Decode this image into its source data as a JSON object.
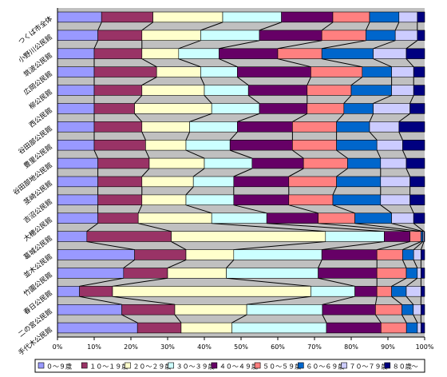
{
  "chart_data": {
    "type": "bar",
    "stacked": "percent",
    "orientation": "horizontal",
    "categories": [
      "つくば市全体",
      "小野川公民館",
      "筑波公民館",
      "広岡公民館",
      "柳公民館",
      "西公民館",
      "谷田部公民館",
      "豊里公民館",
      "谷田部地公民館",
      "茎崎公民館",
      "吉沼公民館",
      "大穂公民館",
      "葛城公民館",
      "並木公民館",
      "竹園公民館",
      "春日公民館",
      "二の宮公民館",
      "手代木公民館"
    ],
    "legend_labels": [
      "０～９歳",
      "１０～１９歳",
      "２０～２９歳",
      "３０～３９歳",
      "４０～４９歳",
      "５０～５９歳",
      "６０～６９歳",
      "７０～７９歳",
      "８０歳～"
    ],
    "colors": [
      "#9999ff",
      "#993366",
      "#ffffcc",
      "#ccffff",
      "#660066",
      "#ff8080",
      "#0066cc",
      "#ccccff",
      "#000080"
    ],
    "series": [
      {
        "name": "０～９歳",
        "values": [
          12,
          11,
          10,
          10,
          10,
          10,
          10,
          10,
          11,
          11,
          11,
          11,
          8,
          21,
          18,
          6,
          17,
          22
        ]
      },
      {
        "name": "１０～１９歳",
        "values": [
          14,
          12,
          13,
          17,
          13,
          11,
          13,
          14,
          14,
          12,
          12,
          11,
          23,
          14,
          12,
          9,
          14,
          12
        ]
      },
      {
        "name": "２０～２９歳",
        "values": [
          19,
          16,
          10,
          12,
          17,
          21,
          13,
          11,
          15,
          14,
          12,
          20,
          42,
          13,
          16,
          54,
          19,
          14
        ]
      },
      {
        "name": "３０～３９歳",
        "values": [
          16,
          16,
          11,
          10,
          12,
          13,
          13,
          12,
          13,
          11,
          13,
          15,
          16,
          24,
          25,
          12,
          20,
          26
        ]
      },
      {
        "name": "４０～４９歳",
        "values": [
          14,
          17,
          16,
          20,
          16,
          13,
          15,
          17,
          14,
          15,
          15,
          14,
          7,
          15,
          16,
          6,
          14,
          15
        ]
      },
      {
        "name": "５０～５９歳",
        "values": [
          10,
          12,
          12,
          14,
          12,
          10,
          12,
          12,
          12,
          13,
          12,
          10,
          3,
          7,
          8,
          4,
          7,
          7
        ]
      },
      {
        "name": "６０～６９歳",
        "values": [
          8,
          8,
          14,
          8,
          11,
          8,
          9,
          11,
          9,
          12,
          13,
          10,
          0.5,
          3,
          3,
          4,
          3,
          3
        ]
      },
      {
        "name": "７０～７９歳",
        "values": [
          5,
          6,
          9,
          6,
          6,
          10,
          8,
          7,
          7,
          8,
          8,
          6,
          0.3,
          2,
          1,
          4,
          2,
          1
        ]
      },
      {
        "name": "８０歳～",
        "values": [
          2,
          2,
          5,
          3,
          3,
          4,
          7,
          6,
          5,
          4,
          4,
          3,
          0.2,
          1,
          1,
          1,
          1,
          1
        ]
      }
    ],
    "x_ticks": [
      "0%",
      "10%",
      "20%",
      "30%",
      "40%",
      "50%",
      "60%",
      "70%",
      "80%",
      "90%",
      "100%"
    ],
    "xlim": [
      0,
      100
    ],
    "legend_position": "bottom",
    "grid": false
  }
}
